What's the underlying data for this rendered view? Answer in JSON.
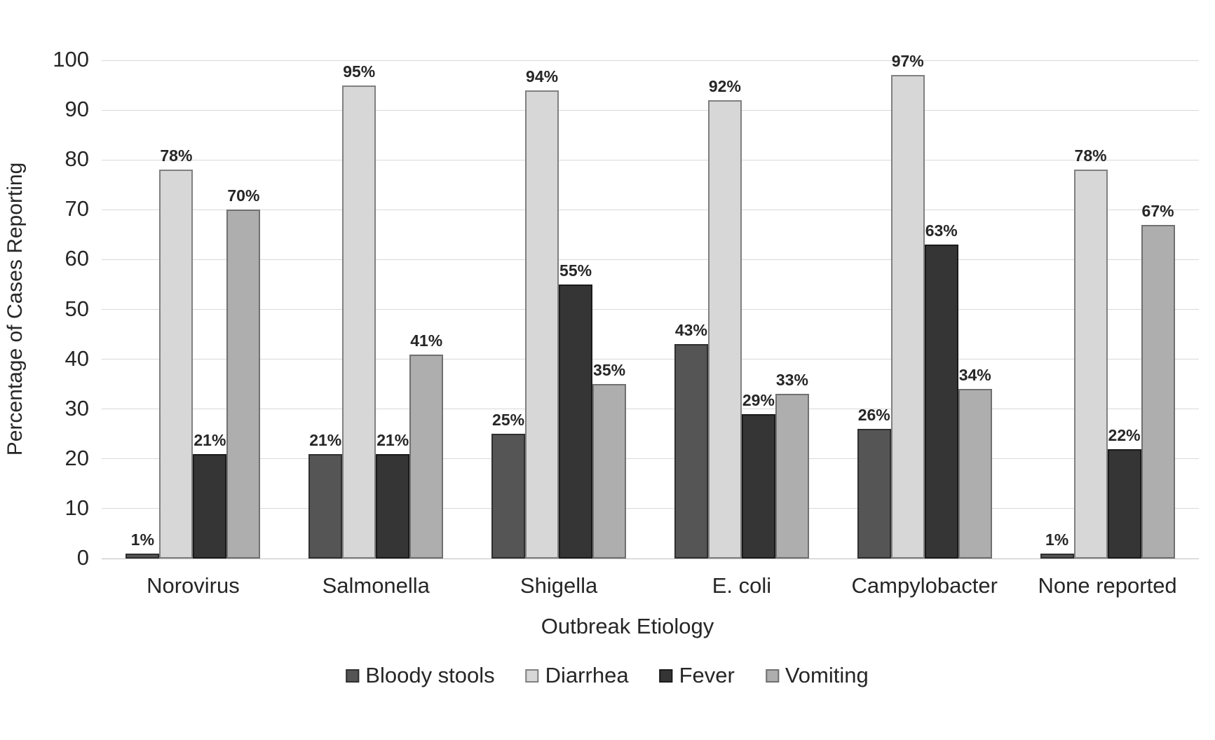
{
  "chart_data": {
    "type": "bar",
    "title": "",
    "xlabel": "Outbreak Etiology",
    "ylabel": "Percentage of Cases Reporting",
    "ylim": [
      0,
      100
    ],
    "ytick_step": 10,
    "yticks": [
      "0",
      "10",
      "20",
      "30",
      "40",
      "50",
      "60",
      "70",
      "80",
      "90",
      "100"
    ],
    "grid": true,
    "legend_position": "bottom",
    "categories": [
      "Norovirus",
      "Salmonella",
      "Shigella",
      "E. coli",
      "Campylobacter",
      "None reported"
    ],
    "series": [
      {
        "name": "Bloody stools",
        "color": "#555555",
        "border_color": "#2f2f2f",
        "values": [
          1,
          21,
          25,
          43,
          26,
          1
        ],
        "labels": [
          "1%",
          "21%",
          "25%",
          "43%",
          "26%",
          "1%"
        ]
      },
      {
        "name": "Diarrhea",
        "color": "#d7d7d7",
        "border_color": "#808080",
        "values": [
          78,
          95,
          94,
          92,
          97,
          78
        ],
        "labels": [
          "78%",
          "95%",
          "94%",
          "92%",
          "97%",
          "78%"
        ]
      },
      {
        "name": "Fever",
        "color": "#353535",
        "border_color": "#1a1a1a",
        "values": [
          21,
          21,
          55,
          29,
          63,
          22
        ],
        "labels": [
          "21%",
          "21%",
          "55%",
          "29%",
          "63%",
          "22%"
        ]
      },
      {
        "name": "Vomiting",
        "color": "#aeaeae",
        "border_color": "#707070",
        "values": [
          70,
          41,
          35,
          33,
          34,
          67
        ],
        "labels": [
          "70%",
          "41%",
          "35%",
          "33%",
          "34%",
          "67%"
        ]
      }
    ],
    "gridline_color": "#d9d9d9",
    "axis_line_color": "#bfbfbf",
    "text_color": "#262626",
    "background_color": "#ffffff"
  }
}
